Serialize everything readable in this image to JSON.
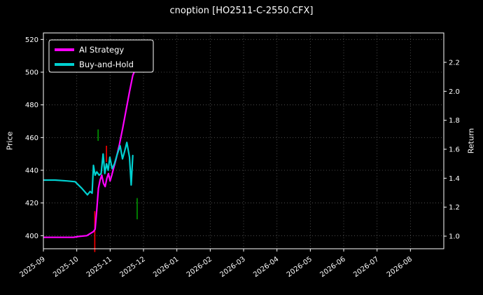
{
  "figure": {
    "background": "#000000",
    "text_color": "#ffffff",
    "spine_color": "#ffffff"
  },
  "chart_data": {
    "type": "line",
    "title": "cnoption [HO2511-C-2550.CFX]",
    "xlabel": "",
    "ylabel_left": "Price",
    "ylabel_right": "Return",
    "x_tick_labels": [
      "2025-09",
      "2025-10",
      "2025-11",
      "2025-12",
      "2026-01",
      "2026-02",
      "2026-03",
      "2026-04",
      "2026-05",
      "2026-06",
      "2026-07",
      "2026-08"
    ],
    "x_unit": "months-from-2025-09",
    "x_range_months": [
      0,
      12
    ],
    "ylim_left": [
      392,
      524
    ],
    "yticks_left": [
      400,
      420,
      440,
      460,
      480,
      500,
      520
    ],
    "ylim_right": [
      0.913,
      2.403
    ],
    "yticks_right": [
      1.0,
      1.2,
      1.4,
      1.6,
      1.8,
      2.0,
      2.2
    ],
    "grid": true,
    "grid_color": "#5a5a5a",
    "legend": {
      "position": "upper-left",
      "items": [
        {
          "label": "AI Strategy",
          "color": "#ff00ff"
        },
        {
          "label": "Buy-and-Hold",
          "color": "#00d0d0"
        }
      ]
    },
    "series": [
      {
        "name": "AI Strategy",
        "color": "#ff00ff",
        "points": [
          [
            0,
            399
          ],
          [
            0.45,
            399
          ],
          [
            0.9,
            399
          ],
          [
            1.05,
            399.5
          ],
          [
            1.3,
            400
          ],
          [
            1.42,
            401.5
          ],
          [
            1.5,
            402.5
          ],
          [
            1.55,
            404
          ],
          [
            1.6,
            416
          ],
          [
            1.65,
            429
          ],
          [
            1.7,
            434
          ],
          [
            1.75,
            437
          ],
          [
            1.8,
            432
          ],
          [
            1.85,
            430
          ],
          [
            1.9,
            435
          ],
          [
            1.95,
            438
          ],
          [
            2.0,
            433.5
          ],
          [
            2.05,
            437
          ],
          [
            2.1,
            441
          ],
          [
            2.18,
            447
          ],
          [
            2.28,
            456
          ],
          [
            2.38,
            466
          ],
          [
            2.48,
            477
          ],
          [
            2.58,
            488
          ],
          [
            2.68,
            498
          ],
          [
            2.78,
            503
          ]
        ]
      },
      {
        "name": "Buy-and-Hold",
        "color": "#00d0d0",
        "points": [
          [
            0,
            434
          ],
          [
            0.35,
            434
          ],
          [
            0.7,
            433.5
          ],
          [
            0.95,
            433
          ],
          [
            1.15,
            429
          ],
          [
            1.32,
            425
          ],
          [
            1.4,
            427
          ],
          [
            1.46,
            426
          ],
          [
            1.5,
            443
          ],
          [
            1.55,
            437
          ],
          [
            1.6,
            439
          ],
          [
            1.67,
            437
          ],
          [
            1.73,
            438
          ],
          [
            1.79,
            450
          ],
          [
            1.84,
            438
          ],
          [
            1.89,
            444
          ],
          [
            1.94,
            440
          ],
          [
            1.99,
            448
          ],
          [
            2.06,
            441
          ],
          [
            2.13,
            444
          ],
          [
            2.2,
            449
          ],
          [
            2.3,
            455
          ],
          [
            2.37,
            447
          ],
          [
            2.44,
            452
          ],
          [
            2.5,
            457
          ],
          [
            2.58,
            448
          ],
          [
            2.63,
            431
          ],
          [
            2.68,
            449
          ]
        ]
      }
    ],
    "trade_markers": [
      {
        "x": 1.54,
        "price_from": 390,
        "price_to": 415,
        "color": "#ff0000"
      },
      {
        "x": 1.64,
        "price_from": 458,
        "price_to": 465,
        "color": "#009900"
      },
      {
        "x": 1.89,
        "price_from": 445,
        "price_to": 455,
        "color": "#ff0000"
      },
      {
        "x": 2.81,
        "price_from": 410,
        "price_to": 423,
        "color": "#009900"
      }
    ]
  }
}
